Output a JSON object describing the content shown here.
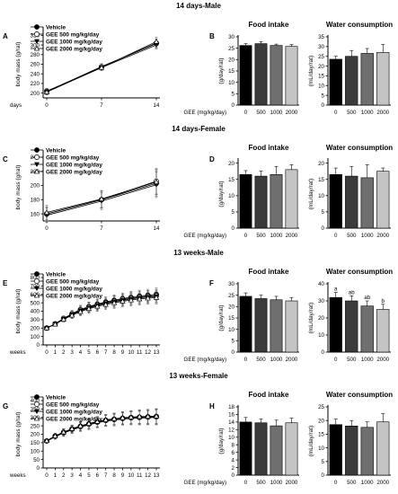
{
  "figure": {
    "colors": {
      "vehicle": "#000000",
      "gee500": "#3b3b3b",
      "gee1000": "#6f6f6f",
      "gee2000": "#c4c4c4",
      "marker_open": "#ffffff"
    },
    "rows": [
      {
        "title": "14 days-Male",
        "line": {
          "panel": "A",
          "ylabel": "body mass (g/rat)",
          "xlabel": "days",
          "y_ticks": [
            200,
            220,
            240,
            260,
            280,
            300,
            320
          ],
          "ylim": [
            190,
            330
          ],
          "x_ticks": [
            "0",
            "7",
            "14"
          ],
          "x_pos": [
            0,
            1,
            2
          ],
          "legend": [
            "Vehicle",
            "GEE 500 mg/kg/day",
            "GEE 1000 mg/kg/day",
            "GEE 2000 mg/kg/day"
          ],
          "series": [
            {
              "name": "Vehicle",
              "values": [
                204,
                254,
                304
              ],
              "err": [
                6,
                6,
                8
              ]
            },
            {
              "name": "GEE 500 mg/kg/day",
              "values": [
                203,
                255,
                303
              ],
              "err": [
                6,
                6,
                9
              ]
            },
            {
              "name": "GEE 1000 mg/kg/day",
              "values": [
                203,
                253,
                300
              ],
              "err": [
                6,
                6,
                8
              ]
            },
            {
              "name": "GEE 2000 mg/kg/day",
              "values": [
                202,
                253,
                307
              ],
              "err": [
                6,
                6,
                9
              ]
            }
          ]
        },
        "bars": {
          "panel": "B",
          "xlabel": "GEE (mg/kg/day)",
          "categories": [
            "0",
            "500",
            "1000",
            "2000"
          ],
          "food": {
            "title": "Food intake",
            "ylabel": "(g/day/rat)",
            "y_ticks": [
              0,
              5,
              10,
              15,
              20,
              25,
              30
            ],
            "ylim": [
              0,
              30
            ],
            "values": [
              26.2,
              27.0,
              26.2,
              25.8
            ],
            "err": [
              0.8,
              0.9,
              0.6,
              0.8
            ],
            "sig": [
              "",
              "",
              "",
              ""
            ]
          },
          "water": {
            "title": "Water consumption",
            "ylabel": "(mL/day/rat)",
            "y_ticks": [
              0,
              5,
              10,
              15,
              20,
              25,
              30,
              35
            ],
            "ylim": [
              0,
              35
            ],
            "values": [
              23.5,
              25.0,
              26.5,
              27.0
            ],
            "err": [
              1.5,
              3.0,
              2.5,
              4.0
            ],
            "sig": [
              "",
              "",
              "",
              ""
            ]
          }
        }
      },
      {
        "title": "14 days-Female",
        "line": {
          "panel": "C",
          "ylabel": "body mass (g/rat)",
          "xlabel": "",
          "y_ticks": [
            160,
            180,
            200,
            220,
            240
          ],
          "ylim": [
            150,
            245
          ],
          "x_ticks": [
            "0",
            "7",
            "14"
          ],
          "x_pos": [
            0,
            1,
            2
          ],
          "legend": [
            "Vehicle",
            "GEE 500 mg/kg/day",
            "GEE 1000 mg/kg/day",
            "GEE 2000 mg/kg/day"
          ],
          "series": [
            {
              "name": "Vehicle",
              "values": [
                160,
                180,
                203
              ],
              "err": [
                10,
                12,
                18
              ]
            },
            {
              "name": "GEE 500 mg/kg/day",
              "values": [
                160,
                180,
                206
              ],
              "err": [
                10,
                12,
                18
              ]
            },
            {
              "name": "GEE 1000 mg/kg/day",
              "values": [
                158,
                178,
                201
              ],
              "err": [
                10,
                12,
                18
              ]
            },
            {
              "name": "GEE 2000 mg/kg/day",
              "values": [
                162,
                181,
                205
              ],
              "err": [
                10,
                12,
                18
              ]
            }
          ]
        },
        "bars": {
          "panel": "D",
          "xlabel": "GEE (mg/kg/day)",
          "categories": [
            "0",
            "500",
            "1000",
            "2000"
          ],
          "food": {
            "title": "Food intake",
            "ylabel": "(g/day/rat)",
            "y_ticks": [
              0,
              5,
              10,
              15,
              20
            ],
            "ylim": [
              0,
              21
            ],
            "values": [
              16.5,
              16.0,
              16.5,
              18.0
            ],
            "err": [
              1.2,
              1.5,
              2.5,
              1.5
            ],
            "sig": [
              "",
              "",
              "",
              ""
            ]
          },
          "water": {
            "title": "Water consumption",
            "ylabel": "(mL/day/rat)",
            "y_ticks": [
              0,
              5,
              10,
              15,
              20
            ],
            "ylim": [
              0,
              21
            ],
            "values": [
              16.5,
              16.0,
              15.5,
              17.5
            ],
            "err": [
              2.0,
              3.0,
              4.0,
              1.0
            ],
            "sig": [
              "",
              "",
              "",
              ""
            ]
          }
        }
      },
      {
        "title": "13 weeks-Male",
        "line": {
          "panel": "E",
          "ylabel": "body mass (g/rat)",
          "xlabel": "weeks",
          "y_ticks": [
            0,
            100,
            200,
            300,
            400,
            500,
            600,
            700,
            800
          ],
          "ylim": [
            0,
            800
          ],
          "x_ticks": [
            "0",
            "1",
            "2",
            "3",
            "4",
            "5",
            "6",
            "7",
            "8",
            "9",
            "10",
            "11",
            "12",
            "13"
          ],
          "x_pos": [
            0,
            1,
            2,
            3,
            4,
            5,
            6,
            7,
            8,
            9,
            10,
            11,
            12,
            13
          ],
          "legend": [
            "Vehicle",
            "GEE 500 mg/kg/day",
            "GEE 1000 mg/kg/day",
            "GEE 2000 mg/kg/day"
          ],
          "series": [
            {
              "name": "Vehicle",
              "values": [
                200,
                250,
                315,
                370,
                420,
                455,
                485,
                510,
                530,
                550,
                565,
                580,
                590,
                600
              ],
              "err": [
                10,
                20,
                30,
                40,
                50,
                55,
                60,
                60,
                65,
                65,
                70,
                70,
                70,
                75
              ]
            },
            {
              "name": "GEE 500 mg/kg/day",
              "values": [
                200,
                250,
                312,
                365,
                412,
                448,
                478,
                500,
                520,
                540,
                555,
                568,
                578,
                585
              ],
              "err": [
                10,
                20,
                30,
                40,
                50,
                55,
                60,
                60,
                65,
                65,
                70,
                70,
                70,
                75
              ]
            },
            {
              "name": "GEE 1000 mg/kg/day",
              "values": [
                200,
                248,
                308,
                360,
                405,
                440,
                470,
                492,
                512,
                530,
                545,
                558,
                568,
                575
              ],
              "err": [
                10,
                20,
                30,
                40,
                50,
                55,
                60,
                60,
                65,
                65,
                70,
                70,
                70,
                75
              ]
            },
            {
              "name": "GEE 2000 mg/kg/day",
              "values": [
                200,
                245,
                302,
                352,
                395,
                430,
                458,
                480,
                500,
                518,
                532,
                545,
                555,
                562
              ],
              "err": [
                10,
                20,
                30,
                40,
                50,
                55,
                60,
                60,
                65,
                65,
                70,
                70,
                70,
                75
              ]
            }
          ]
        },
        "bars": {
          "panel": "F",
          "xlabel": "GEE (mg/kg/day)",
          "categories": [
            "0",
            "500",
            "1000",
            "2000"
          ],
          "food": {
            "title": "Food intake",
            "ylabel": "(g/day/rat)",
            "y_ticks": [
              0,
              5,
              10,
              15,
              20,
              25,
              30
            ],
            "ylim": [
              0,
              30
            ],
            "values": [
              24.5,
              23.5,
              23.0,
              22.5
            ],
            "err": [
              1.5,
              1.5,
              1.5,
              1.5
            ],
            "sig": [
              "",
              "",
              "",
              ""
            ]
          },
          "water": {
            "title": "Water consumption",
            "ylabel": "(mL/day/rat)",
            "y_ticks": [
              0,
              10,
              20,
              30,
              40
            ],
            "ylim": [
              0,
              40
            ],
            "values": [
              32.0,
              30.0,
              27.0,
              25.0
            ],
            "err": [
              3.0,
              3.0,
              3.0,
              3.0
            ],
            "sig": [
              "a",
              "ab",
              "ab",
              "b"
            ]
          }
        }
      },
      {
        "title": "13 weeks-Female",
        "line": {
          "panel": "G",
          "ylabel": "body mass (g/rat)",
          "xlabel": "weeks",
          "y_ticks": [
            0,
            50,
            100,
            150,
            200,
            250,
            300,
            350,
            400
          ],
          "ylim": [
            0,
            400
          ],
          "x_ticks": [
            "0",
            "1",
            "2",
            "3",
            "4",
            "5",
            "6",
            "7",
            "8",
            "9",
            "10",
            "11",
            "12",
            "13"
          ],
          "x_pos": [
            0,
            1,
            2,
            3,
            4,
            5,
            6,
            7,
            8,
            9,
            10,
            11,
            12,
            13
          ],
          "legend": [
            "Vehicle",
            "GEE 500 mg/kg/day",
            "GEE 1000 mg/kg/day",
            "GEE 2000 mg/kg/day"
          ],
          "series": [
            {
              "name": "Vehicle",
              "values": [
                160,
                190,
                212,
                232,
                248,
                262,
                274,
                284,
                290,
                296,
                300,
                302,
                304,
                306
              ],
              "err": [
                10,
                15,
                20,
                22,
                25,
                28,
                30,
                32,
                34,
                36,
                38,
                40,
                42,
                44
              ]
            },
            {
              "name": "GEE 500 mg/kg/day",
              "values": [
                160,
                188,
                210,
                230,
                246,
                260,
                272,
                282,
                288,
                294,
                298,
                300,
                302,
                304
              ],
              "err": [
                10,
                15,
                20,
                22,
                25,
                28,
                30,
                32,
                34,
                36,
                38,
                40,
                42,
                44
              ]
            },
            {
              "name": "GEE 1000 mg/kg/day",
              "values": [
                158,
                185,
                207,
                226,
                242,
                256,
                268,
                278,
                284,
                290,
                294,
                296,
                298,
                300
              ],
              "err": [
                10,
                15,
                20,
                22,
                25,
                28,
                30,
                32,
                34,
                36,
                38,
                40,
                42,
                44
              ]
            },
            {
              "name": "GEE 2000 mg/kg/day",
              "values": [
                162,
                190,
                213,
                233,
                250,
                264,
                276,
                286,
                292,
                298,
                302,
                305,
                306,
                308
              ],
              "err": [
                10,
                15,
                20,
                22,
                25,
                28,
                30,
                32,
                34,
                36,
                38,
                40,
                42,
                44
              ]
            }
          ]
        },
        "bars": {
          "panel": "H",
          "xlabel": "GEE (mg/kg/day)",
          "categories": [
            "0",
            "500",
            "1000",
            "2000"
          ],
          "food": {
            "title": "Food intake",
            "ylabel": "(g/day/rat)",
            "y_ticks": [
              0,
              2,
              4,
              6,
              8,
              10,
              12,
              14,
              16,
              18
            ],
            "ylim": [
              0,
              18
            ],
            "values": [
              14.0,
              13.8,
              13.0,
              13.8
            ],
            "err": [
              1.2,
              1.0,
              1.5,
              1.2
            ],
            "sig": [
              "",
              "",
              "",
              ""
            ]
          },
          "water": {
            "title": "Water consumption",
            "ylabel": "(mL/day/rat)",
            "y_ticks": [
              0,
              5,
              10,
              15,
              20,
              25
            ],
            "ylim": [
              0,
              25
            ],
            "values": [
              18.5,
              18.0,
              17.5,
              19.5
            ],
            "err": [
              2.0,
              2.0,
              2.0,
              3.0
            ],
            "sig": [
              "",
              "",
              "",
              ""
            ]
          }
        }
      }
    ]
  }
}
